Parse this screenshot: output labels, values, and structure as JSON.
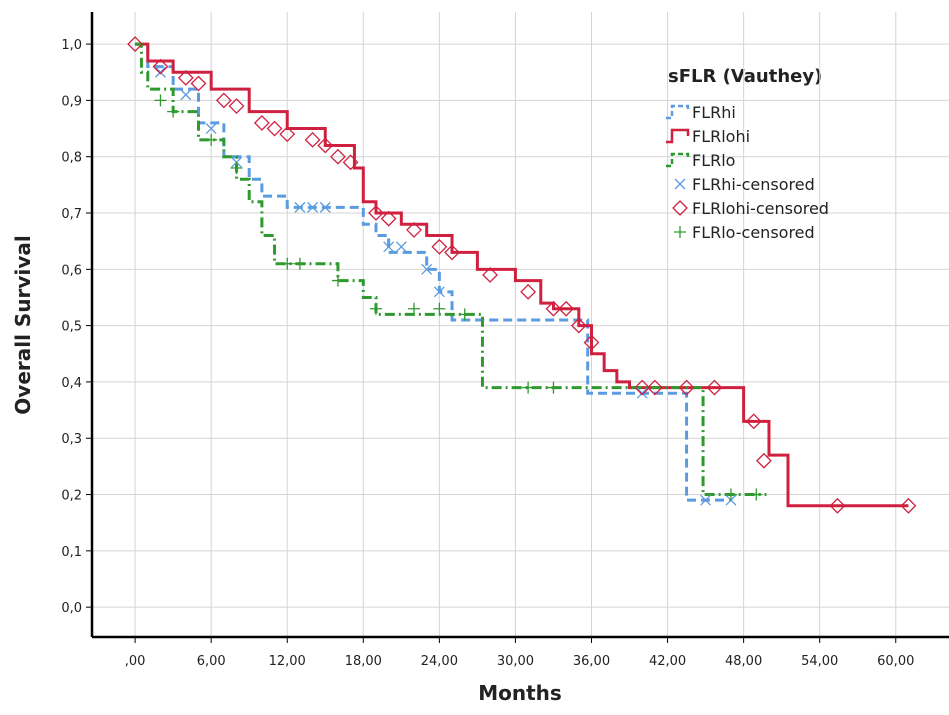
{
  "chart_data": {
    "type": "step",
    "title": "sFLR (Vauthey)",
    "x_label": "Months",
    "y_label": "Overall Survival",
    "xlim": [
      -3.4,
      64.2
    ],
    "ylim": [
      -0.053,
      1.057
    ],
    "xticks": [
      {
        "value": 0,
        "label": ",00"
      },
      {
        "value": 6,
        "label": "6,00"
      },
      {
        "value": 12,
        "label": "12,00"
      },
      {
        "value": 18,
        "label": "18,00"
      },
      {
        "value": 24,
        "label": "24,00"
      },
      {
        "value": 30,
        "label": "30,00"
      },
      {
        "value": 36,
        "label": "36,00"
      },
      {
        "value": 42,
        "label": "42,00"
      },
      {
        "value": 48,
        "label": "48,00"
      },
      {
        "value": 54,
        "label": "54,00"
      },
      {
        "value": 60,
        "label": "60,00"
      }
    ],
    "yticks": [
      {
        "value": 0,
        "label": "0,0"
      },
      {
        "value": 0.1,
        "label": "0,1"
      },
      {
        "value": 0.2,
        "label": "0,2"
      },
      {
        "value": 0.3,
        "label": "0,3"
      },
      {
        "value": 0.4,
        "label": "0,4"
      },
      {
        "value": 0.5,
        "label": "0,5"
      },
      {
        "value": 0.6,
        "label": "0,6"
      },
      {
        "value": 0.7,
        "label": "0,7"
      },
      {
        "value": 0.8,
        "label": "0,8"
      },
      {
        "value": 0.9,
        "label": "0,9"
      },
      {
        "value": 1,
        "label": "1,0"
      }
    ],
    "grid": true,
    "series": [
      {
        "name": "FLRhi",
        "color": "#5b9be0",
        "style": "dash",
        "x": [
          0,
          1,
          3,
          5,
          7,
          9,
          10,
          12,
          18,
          19,
          20,
          23,
          24,
          25,
          35.7,
          43.5,
          47
        ],
        "values": [
          1,
          0.96,
          0.92,
          0.86,
          0.8,
          0.76,
          0.73,
          0.71,
          0.68,
          0.66,
          0.63,
          0.6,
          0.56,
          0.51,
          0.38,
          0.19,
          0.19
        ]
      },
      {
        "name": "FLRlohi",
        "color": "#d0203f",
        "style": "solid",
        "x": [
          0,
          1,
          3,
          6,
          9,
          12,
          15,
          17.3,
          18,
          19,
          21,
          23,
          25,
          27,
          30,
          32,
          33,
          35,
          36,
          37,
          38,
          39,
          48,
          50,
          51.5,
          61
        ],
        "values": [
          1,
          0.97,
          0.95,
          0.92,
          0.88,
          0.85,
          0.82,
          0.78,
          0.72,
          0.7,
          0.68,
          0.66,
          0.63,
          0.6,
          0.58,
          0.54,
          0.53,
          0.5,
          0.45,
          0.42,
          0.4,
          0.39,
          0.33,
          0.27,
          0.18,
          0.18
        ]
      },
      {
        "name": "FLRlo",
        "color": "#2e9a2e",
        "style": "dashdot",
        "x": [
          0,
          0.5,
          1,
          3,
          5,
          7,
          8,
          9,
          10,
          11,
          16,
          18,
          19,
          27.4,
          44.8,
          49.8
        ],
        "values": [
          1,
          0.95,
          0.92,
          0.88,
          0.83,
          0.8,
          0.76,
          0.72,
          0.66,
          0.61,
          0.58,
          0.55,
          0.52,
          0.39,
          0.2,
          0.2
        ]
      },
      {
        "name": "FLRhi-censored",
        "color": "#5b9be0",
        "marker": "x",
        "x": [
          2,
          4,
          6,
          8,
          13,
          14,
          15,
          20,
          21,
          23,
          24,
          40,
          45,
          47
        ],
        "values": [
          0.95,
          0.91,
          0.85,
          0.79,
          0.71,
          0.71,
          0.71,
          0.64,
          0.64,
          0.6,
          0.56,
          0.38,
          0.19,
          0.19
        ]
      },
      {
        "name": "FLRlohi-censored",
        "color": "#d0203f",
        "marker": "diamond",
        "x": [
          0,
          2,
          4,
          5,
          7,
          8,
          10,
          11,
          12,
          14,
          15,
          16,
          17,
          19,
          20,
          22,
          24,
          25,
          28,
          31,
          33,
          34,
          35,
          36,
          40,
          41,
          43.5,
          45.7,
          48.8,
          49.6,
          55.4,
          61
        ],
        "values": [
          1,
          0.96,
          0.94,
          0.93,
          0.9,
          0.89,
          0.86,
          0.85,
          0.84,
          0.83,
          0.82,
          0.8,
          0.79,
          0.7,
          0.69,
          0.67,
          0.64,
          0.63,
          0.59,
          0.56,
          0.53,
          0.53,
          0.5,
          0.47,
          0.39,
          0.39,
          0.39,
          0.39,
          0.33,
          0.26,
          0.18,
          0.18
        ]
      },
      {
        "name": "FLRlo-censored",
        "color": "#2e9a2e",
        "marker": "plus",
        "x": [
          2,
          3,
          6,
          8,
          12,
          13,
          16,
          19,
          22,
          24,
          26,
          31,
          33,
          47,
          49
        ],
        "values": [
          0.9,
          0.88,
          0.83,
          0.78,
          0.61,
          0.61,
          0.58,
          0.53,
          0.53,
          0.53,
          0.52,
          0.39,
          0.39,
          0.2,
          0.2
        ]
      }
    ]
  }
}
